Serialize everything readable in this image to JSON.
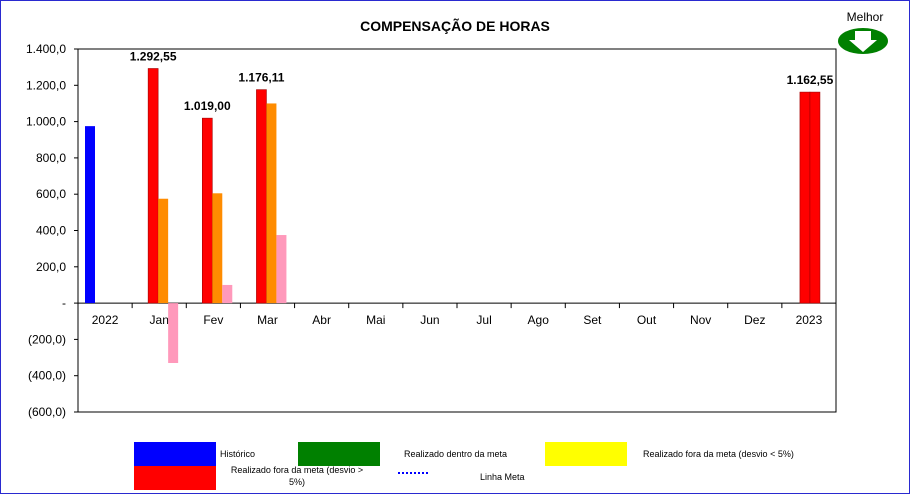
{
  "title": "COMPENSAÇÃO DE HORAS",
  "indicator": {
    "label": "Melhor",
    "icon": "down-arrow-icon",
    "color": "#008000"
  },
  "colors": {
    "historico": "#0000ff",
    "dentro": "#008000",
    "fora_menor": "#ffff00",
    "fora_maior": "#ff0000",
    "meta_line": "#0000ff",
    "orange": "#ff8c00",
    "pink": "#ff99bb"
  },
  "legend": {
    "historico": "Histórico",
    "dentro": "Realizado dentro da meta",
    "fora_menor": "Realizado fora da meta (desvio < 5%)",
    "fora_maior": "Realizado fora da meta (desvio > 5%)",
    "meta": "Linha Meta"
  },
  "chart_data": {
    "type": "bar",
    "title": "COMPENSAÇÃO DE HORAS",
    "categories": [
      "2022",
      "Jan",
      "Fev",
      "Mar",
      "Abr",
      "Mai",
      "Jun",
      "Jul",
      "Ago",
      "Set",
      "Out",
      "Nov",
      "Dez",
      "2023"
    ],
    "ylim": [
      -600,
      1400
    ],
    "yticks": [
      {
        "value": 1400,
        "label": "1.400,0"
      },
      {
        "value": 1200,
        "label": "1.200,0"
      },
      {
        "value": 1000,
        "label": "1.000,0"
      },
      {
        "value": 800,
        "label": "800,0"
      },
      {
        "value": 600,
        "label": "600,0"
      },
      {
        "value": 400,
        "label": "400,0"
      },
      {
        "value": 200,
        "label": "200,0"
      },
      {
        "value": 0,
        "label": "-"
      },
      {
        "value": -200,
        "label": "(200,0)"
      },
      {
        "value": -400,
        "label": "(400,0)"
      },
      {
        "value": -600,
        "label": "(600,0)"
      }
    ],
    "series": [
      {
        "values": [
          975,
          null,
          null,
          null,
          null,
          null,
          null,
          null,
          null,
          null,
          null,
          null,
          null,
          null
        ],
        "color": "#0000ff"
      },
      {
        "values": [
          null,
          1292.55,
          1019.0,
          1176.11,
          null,
          null,
          null,
          null,
          null,
          null,
          null,
          null,
          null,
          1162.55
        ],
        "color": "#ff0000"
      },
      {
        "values": [
          null,
          575,
          605,
          1100,
          null,
          null,
          null,
          null,
          null,
          null,
          null,
          null,
          null,
          null
        ],
        "color": "#ff8c00"
      },
      {
        "values": [
          null,
          -330,
          100,
          375,
          null,
          null,
          null,
          null,
          null,
          null,
          null,
          null,
          null,
          null
        ],
        "color": "#ff99bb"
      }
    ],
    "data_labels": [
      {
        "category": "Jan",
        "text": "1.292,55"
      },
      {
        "category": "Fev",
        "text": "1.019,00"
      },
      {
        "category": "Mar",
        "text": "1.176,11"
      },
      {
        "category": "2023",
        "text": "1.162,55"
      }
    ],
    "grid": false,
    "legend_position": "bottom"
  }
}
